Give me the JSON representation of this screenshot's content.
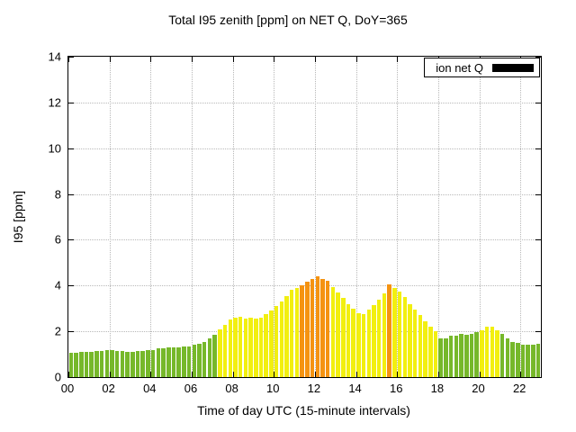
{
  "title": "Total I95 zenith [ppm] on NET Q, DoY=365",
  "legend": {
    "label": "ion net Q",
    "swatch_color": "#000000"
  },
  "chart_data": {
    "type": "bar",
    "title": "Total I95 zenith [ppm] on NET Q, DoY=365",
    "xlabel": "Time of day UTC (15-minute intervals)",
    "ylabel": "I95 [ppm]",
    "series_name": "ion net Q",
    "interval_minutes": 15,
    "x_hours_range": [
      0,
      23
    ],
    "ylim": [
      0,
      14
    ],
    "yticks": [
      0,
      2,
      4,
      6,
      8,
      10,
      12,
      14
    ],
    "xticks": [
      0,
      2,
      4,
      6,
      8,
      10,
      12,
      14,
      16,
      18,
      20,
      22
    ],
    "xtick_labels": [
      "00",
      "02",
      "04",
      "06",
      "08",
      "10",
      "12",
      "14",
      "16",
      "18",
      "20",
      "22"
    ],
    "grid": true,
    "legend_position": "top-right",
    "color_rules": {
      "yellow_min": 2.0,
      "orange_min": 4.0,
      "colors": {
        "green": "#76b82a",
        "yellow": "#f2ef0f",
        "orange": "#f59311"
      }
    },
    "values": [
      1.05,
      1.05,
      1.1,
      1.1,
      1.1,
      1.15,
      1.15,
      1.2,
      1.2,
      1.15,
      1.15,
      1.1,
      1.1,
      1.15,
      1.15,
      1.2,
      1.2,
      1.25,
      1.25,
      1.3,
      1.3,
      1.3,
      1.35,
      1.35,
      1.4,
      1.45,
      1.55,
      1.7,
      1.85,
      2.1,
      2.3,
      2.5,
      2.6,
      2.65,
      2.55,
      2.6,
      2.55,
      2.6,
      2.75,
      2.9,
      3.1,
      3.3,
      3.55,
      3.8,
      3.9,
      4.0,
      4.15,
      4.3,
      4.4,
      4.3,
      4.2,
      3.95,
      3.7,
      3.45,
      3.2,
      3.0,
      2.8,
      2.75,
      2.95,
      3.15,
      3.4,
      3.65,
      4.05,
      3.9,
      3.75,
      3.5,
      3.2,
      2.95,
      2.7,
      2.45,
      2.2,
      2.0,
      1.7,
      1.7,
      1.8,
      1.8,
      1.9,
      1.85,
      1.9,
      1.95,
      2.05,
      2.2,
      2.2,
      2.05,
      1.9,
      1.7,
      1.55,
      1.5,
      1.4,
      1.4,
      1.4,
      1.45
    ]
  }
}
